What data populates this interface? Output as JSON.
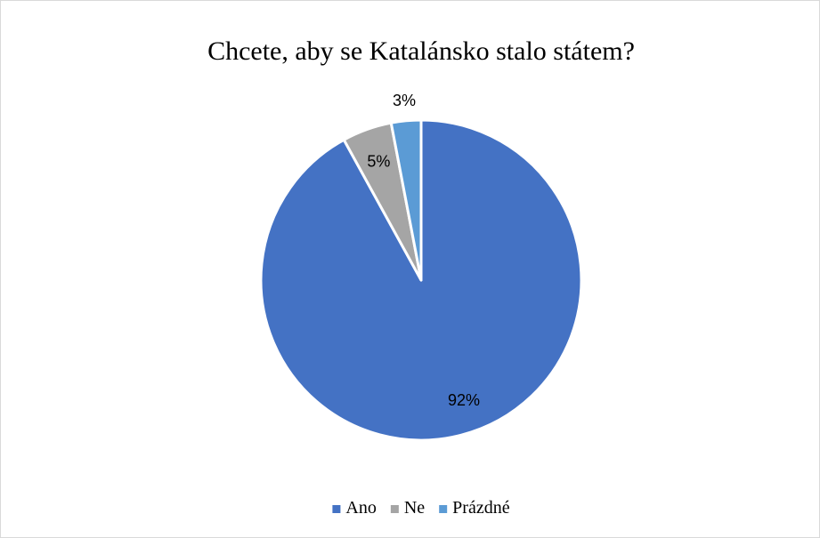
{
  "chart_data": {
    "type": "pie",
    "title": "Chcete, aby se Katalánsko stalo státem?",
    "categories": [
      "Ano",
      "Ne",
      "Prázdné"
    ],
    "values": [
      92,
      5,
      3
    ],
    "data_labels": [
      "92%",
      "5%",
      "3%"
    ],
    "colors": [
      "#4472C4",
      "#A5A5A5",
      "#5B9BD5"
    ],
    "start_angle": "12 o'clock",
    "direction": "clockwise",
    "legend": "bottom-center"
  }
}
